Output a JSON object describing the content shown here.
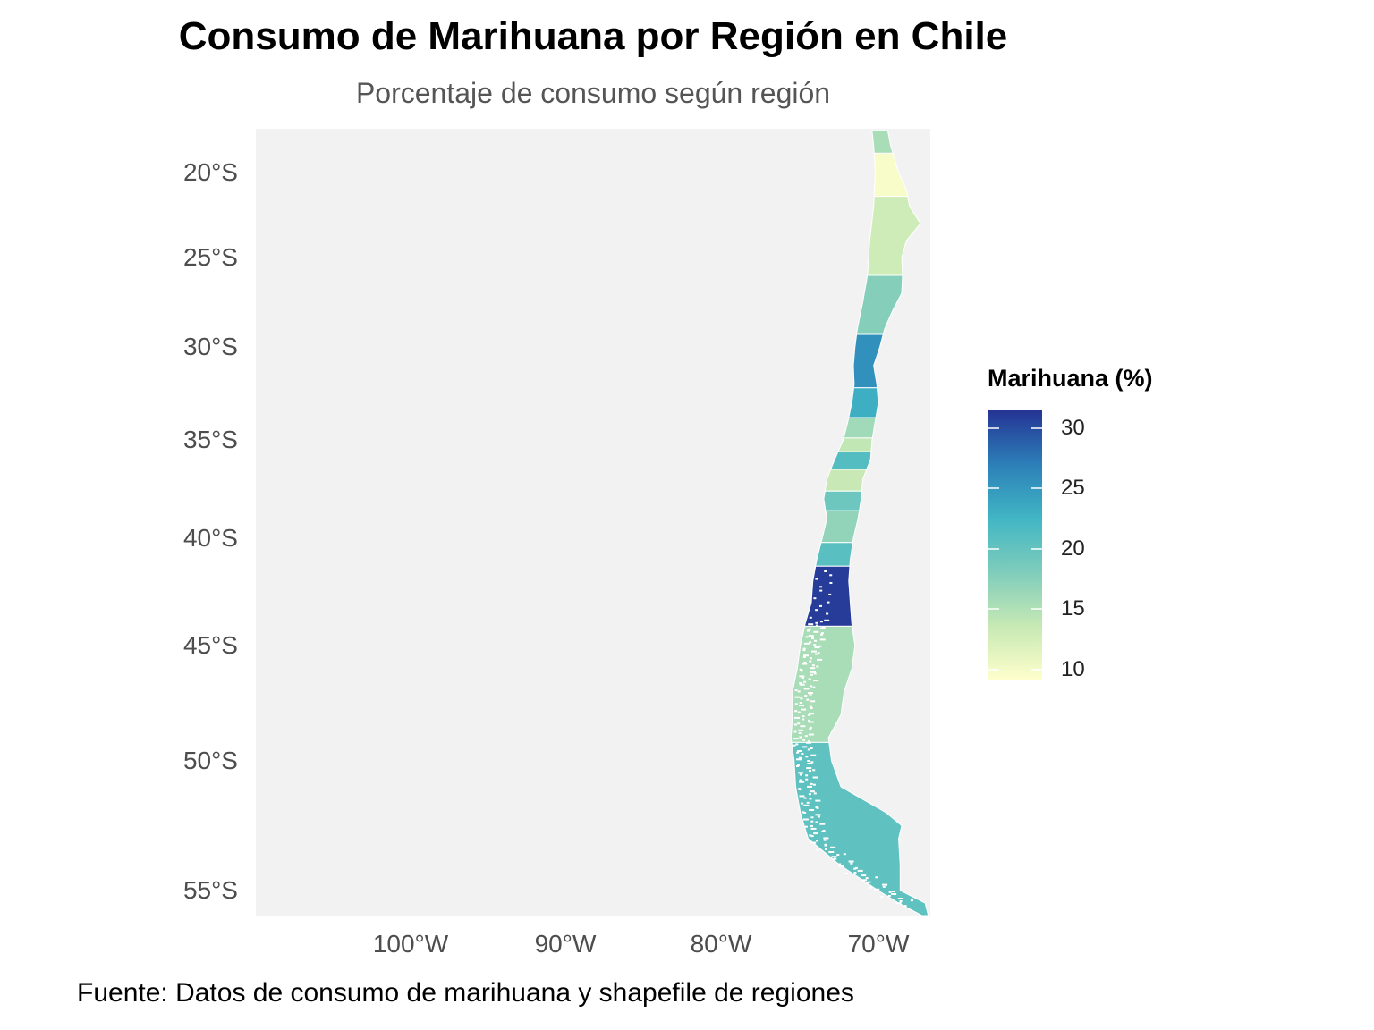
{
  "title": "Consumo de Marihuana por Región en Chile",
  "subtitle": "Porcentaje de consumo según región",
  "caption": "Fuente: Datos de consumo de marihuana y shapefile de regiones",
  "axes": {
    "y_ticks": [
      "20°S",
      "25°S",
      "30°S",
      "35°S",
      "40°S",
      "45°S",
      "50°S",
      "55°S"
    ],
    "x_ticks": [
      "100°W",
      "90°W",
      "80°W",
      "70°W"
    ]
  },
  "legend": {
    "title": "Marihuana (%)",
    "ticks": [
      "30",
      "25",
      "20",
      "15",
      "10"
    ],
    "scale_min": 9,
    "scale_max": 32,
    "colors": [
      "#ffffcc",
      "#c7e9b4",
      "#7fcdbb",
      "#41b6c4",
      "#2c7fb8",
      "#253494"
    ]
  },
  "chart_data": {
    "type": "choropleth",
    "map_extent": {
      "lon": [
        -110,
        -66.5
      ],
      "lat": [
        -56,
        -17.5
      ]
    },
    "regions": [
      {
        "lat_north": -17.6,
        "lat_south": -18.9,
        "value": 15.5
      },
      {
        "lat_north": -18.9,
        "lat_south": -21.4,
        "value": 9.6
      },
      {
        "lat_north": -21.4,
        "lat_south": -26.0,
        "value": 13.0
      },
      {
        "lat_north": -26.0,
        "lat_south": -29.3,
        "value": 17.8
      },
      {
        "lat_north": -29.3,
        "lat_south": -32.2,
        "value": 26.0
      },
      {
        "lat_north": -32.2,
        "lat_south": -33.8,
        "value": 23.5
      },
      {
        "lat_north": -33.8,
        "lat_south": -34.9,
        "value": 16.0
      },
      {
        "lat_north": -34.9,
        "lat_south": -35.6,
        "value": 14.0
      },
      {
        "lat_north": -35.6,
        "lat_south": -36.5,
        "value": 21.5
      },
      {
        "lat_north": -36.5,
        "lat_south": -37.6,
        "value": 13.5
      },
      {
        "lat_north": -37.6,
        "lat_south": -38.6,
        "value": 19.5
      },
      {
        "lat_north": -38.6,
        "lat_south": -40.2,
        "value": 17.0
      },
      {
        "lat_north": -40.2,
        "lat_south": -41.3,
        "value": 21.0
      },
      {
        "lat_north": -41.3,
        "lat_south": -44.1,
        "value": 31.5
      },
      {
        "lat_north": -44.1,
        "lat_south": -49.2,
        "value": 15.5
      },
      {
        "lat_north": -49.2,
        "lat_south": -56.0,
        "value": 20.5
      }
    ]
  }
}
